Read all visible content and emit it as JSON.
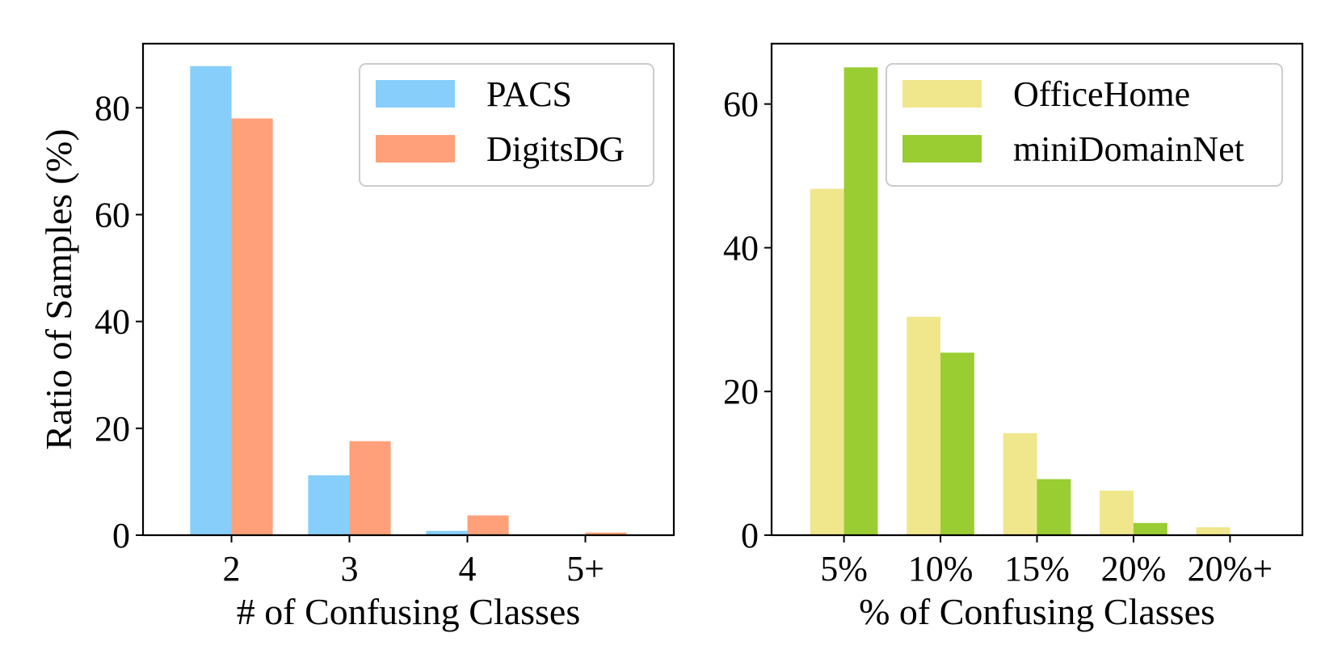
{
  "chart_data": [
    {
      "type": "bar",
      "xlabel": "# of Confusing Classes",
      "ylabel": "Ratio of Samples (%)",
      "categories": [
        "2",
        "3",
        "4",
        "5+"
      ],
      "series": [
        {
          "name": "PACS",
          "color": "#87CEFA",
          "values": [
            87.8,
            11.2,
            0.8,
            0.0
          ]
        },
        {
          "name": "DigitsDG",
          "color": "#FFA07A",
          "values": [
            78.0,
            17.6,
            3.7,
            0.5
          ]
        }
      ],
      "ylim": [
        0,
        92
      ],
      "yticks": [
        0,
        20,
        40,
        60,
        80
      ],
      "legend": "top-right"
    },
    {
      "type": "bar",
      "xlabel": "% of Confusing Classes",
      "ylabel": "",
      "categories": [
        "5%",
        "10%",
        "15%",
        "20%",
        "20%+"
      ],
      "series": [
        {
          "name": "OfficeHome",
          "color": "#F0E68C",
          "values": [
            48.2,
            30.4,
            14.2,
            6.2,
            1.1
          ]
        },
        {
          "name": "miniDomainNet",
          "color": "#9ACD32",
          "values": [
            65.1,
            25.4,
            7.8,
            1.7,
            0.1
          ]
        }
      ],
      "ylim": [
        0,
        68.4
      ],
      "yticks": [
        0,
        20,
        40,
        60
      ],
      "legend": "top-right"
    }
  ]
}
